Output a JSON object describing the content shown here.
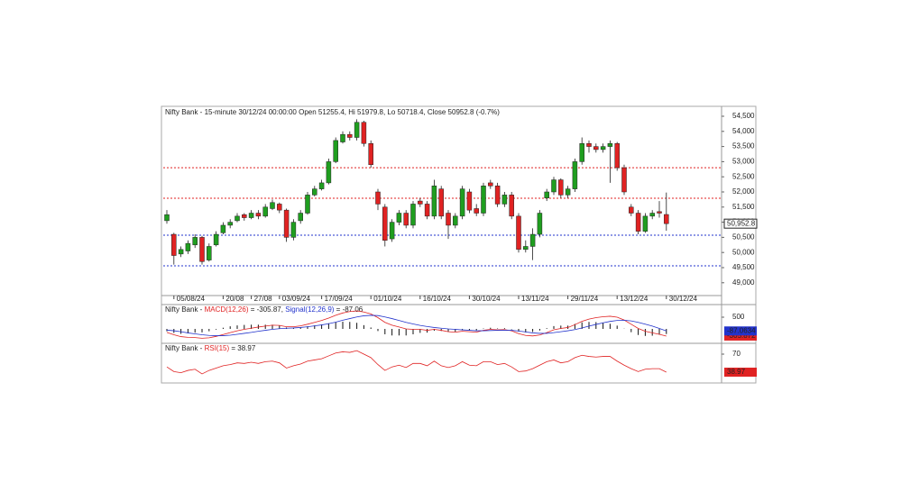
{
  "chart_data": [
    {
      "type": "candlestick",
      "title": "Nifty Bank - 15-minute 30/12/24 00:00:00 Open 51255.4, Hi 51979.8, Lo 50718.4, Close 50952.8 (-0.7%)",
      "categories": [
        null,
        "05/08/24",
        null,
        null,
        null,
        null,
        null,
        null,
        "20/08",
        null,
        null,
        null,
        "27/08",
        null,
        null,
        null,
        "03/09/24",
        null,
        null,
        null,
        null,
        null,
        "17/09/24",
        null,
        null,
        null,
        null,
        null,
        null,
        "01/10/24",
        null,
        null,
        null,
        null,
        null,
        null,
        "16/10/24",
        null,
        null,
        null,
        null,
        null,
        null,
        "30/10/24",
        null,
        null,
        null,
        null,
        null,
        null,
        "13/11/24",
        null,
        null,
        null,
        null,
        null,
        null,
        "29/11/24",
        null,
        null,
        null,
        null,
        null,
        null,
        "13/12/24",
        null,
        null,
        null,
        null,
        null,
        null,
        "30/12/24"
      ],
      "open": [
        51050,
        50600,
        49950,
        50050,
        50250,
        50500,
        49750,
        50250,
        50650,
        50900,
        51050,
        51250,
        51150,
        51300,
        51200,
        51450,
        51600,
        51400,
        50500,
        51050,
        51300,
        51900,
        52100,
        52300,
        53000,
        53650,
        53900,
        53800,
        54300,
        53600,
        52000,
        51500,
        50450,
        51000,
        51300,
        50900,
        51700,
        51600,
        51200,
        52100,
        51300,
        50900,
        51200,
        52000,
        51450,
        51300,
        52300,
        52200,
        51600,
        51900,
        51200,
        50100,
        50200,
        50600,
        51800,
        52000,
        52400,
        51900,
        52100,
        53000,
        53600,
        53500,
        53400,
        53500,
        53600,
        52800,
        51500,
        51300,
        50700,
        51200,
        51350,
        51255.4
      ],
      "high": [
        51400,
        50650,
        50200,
        50400,
        50600,
        50550,
        50300,
        50700,
        51000,
        51100,
        51300,
        51300,
        51400,
        51400,
        51600,
        51750,
        51650,
        51450,
        51100,
        51400,
        52000,
        52200,
        52400,
        53100,
        53800,
        54000,
        54000,
        54400,
        54350,
        53700,
        52100,
        51600,
        51100,
        51400,
        51400,
        51700,
        51800,
        51700,
        52400,
        52200,
        51400,
        51300,
        52200,
        52100,
        51600,
        52300,
        52400,
        52300,
        52000,
        52000,
        51300,
        50400,
        50800,
        51400,
        52100,
        52500,
        52450,
        52200,
        53100,
        53800,
        53700,
        53600,
        53600,
        53700,
        53650,
        52900,
        51600,
        51400,
        51300,
        51400,
        51700,
        51979.8
      ],
      "low": [
        50950,
        49600,
        49850,
        49950,
        50150,
        49600,
        49700,
        50200,
        50600,
        50800,
        51000,
        51050,
        51100,
        51100,
        51150,
        51400,
        51300,
        50350,
        50400,
        50950,
        51250,
        51850,
        52050,
        52250,
        52950,
        53600,
        53700,
        53700,
        53500,
        52800,
        51400,
        50200,
        50350,
        50900,
        50800,
        50800,
        51500,
        51100,
        51100,
        51100,
        50450,
        50800,
        51100,
        51300,
        51200,
        51200,
        52100,
        51500,
        51500,
        51100,
        50000,
        50000,
        49750,
        50500,
        51700,
        51900,
        51800,
        51800,
        52000,
        52900,
        53300,
        53300,
        53300,
        52300,
        52700,
        51900,
        51200,
        50600,
        50650,
        51100,
        51150,
        50718.4
      ],
      "close": [
        51250,
        49900,
        50100,
        50300,
        50500,
        49700,
        50200,
        50600,
        50900,
        51000,
        51200,
        51150,
        51300,
        51200,
        51500,
        51650,
        51400,
        50500,
        51000,
        51300,
        51900,
        52100,
        52300,
        53000,
        53700,
        53900,
        53800,
        54300,
        53600,
        52900,
        51600,
        50400,
        51000,
        51300,
        50900,
        51600,
        51600,
        51200,
        52200,
        51200,
        50900,
        51200,
        52100,
        51400,
        51300,
        52200,
        52200,
        51600,
        51900,
        51200,
        50100,
        50200,
        50600,
        51300,
        52000,
        52400,
        51900,
        52100,
        53000,
        53600,
        53500,
        53400,
        53500,
        53600,
        52800,
        52000,
        51300,
        50700,
        51200,
        51300,
        51300,
        50952.8
      ],
      "up_color": "#1f9e1f",
      "down_color": "#e02222",
      "last_value_label": "50,952.8",
      "ylim": [
        48577,
        54768
      ],
      "yticks": [
        {
          "value": 54500,
          "label": "54,500"
        },
        {
          "value": 54000,
          "label": "54,000"
        },
        {
          "value": 53500,
          "label": "53,500"
        },
        {
          "value": 53000,
          "label": "53,000"
        },
        {
          "value": 52500,
          "label": "52,500"
        },
        {
          "value": 52000,
          "label": "52,000"
        },
        {
          "value": 51500,
          "label": "51,500"
        },
        {
          "value": 51000,
          "label": "51,000"
        },
        {
          "value": 50500,
          "label": "50,500"
        },
        {
          "value": 50000,
          "label": "50,000"
        },
        {
          "value": 49500,
          "label": "49,500"
        },
        {
          "value": 49000,
          "label": "49,000"
        }
      ],
      "levels": [
        {
          "value": 52800,
          "color": "#e02222"
        },
        {
          "value": 51790,
          "color": "#e02222"
        },
        {
          "value": 50570,
          "color": "#2233cc"
        },
        {
          "value": 49560,
          "color": "#2233cc"
        }
      ]
    },
    {
      "type": "macd",
      "title_parts": [
        "Nifty Bank - ",
        "MACD(12,26)",
        " = -305.87, ",
        "Signal(12,26,9)",
        " = -87.06"
      ],
      "series": [
        {
          "name": "MACD(12,26)",
          "color": "#e02222",
          "last_label": "-305.872",
          "values": [
            -150,
            -250,
            -330,
            -360,
            -370,
            -400,
            -380,
            -320,
            -240,
            -160,
            -80,
            -20,
            30,
            80,
            120,
            160,
            150,
            90,
            90,
            130,
            200,
            280,
            360,
            460,
            580,
            680,
            740,
            770,
            720,
            640,
            480,
            280,
            160,
            80,
            0,
            -20,
            -20,
            -60,
            -20,
            -60,
            -120,
            -140,
            -100,
            -120,
            -140,
            -60,
            -20,
            -40,
            -30,
            -80,
            -200,
            -280,
            -300,
            -260,
            -160,
            -40,
            20,
            60,
            180,
            320,
            420,
            480,
            520,
            540,
            500,
            380,
            200,
            20,
            -100,
            -170,
            -230,
            -305.87
          ]
        },
        {
          "name": "Signal(12,26,9)",
          "color": "#2233cc",
          "last_label": "-87.0634",
          "values": [
            -50,
            -80,
            -120,
            -170,
            -210,
            -250,
            -280,
            -290,
            -290,
            -270,
            -230,
            -190,
            -150,
            -100,
            -60,
            -20,
            10,
            30,
            40,
            60,
            90,
            130,
            170,
            220,
            290,
            370,
            440,
            510,
            560,
            580,
            570,
            510,
            440,
            360,
            280,
            210,
            150,
            100,
            60,
            30,
            0,
            -20,
            -40,
            -60,
            -80,
            -80,
            -70,
            -60,
            -60,
            -60,
            -90,
            -130,
            -170,
            -190,
            -190,
            -160,
            -120,
            -80,
            -30,
            40,
            120,
            190,
            260,
            320,
            360,
            370,
            340,
            280,
            200,
            120,
            20,
            -87.06
          ]
        }
      ],
      "histogram": {
        "color": "#111111",
        "values": [
          -100,
          -170,
          -210,
          -190,
          -160,
          -150,
          -100,
          -30,
          50,
          110,
          150,
          170,
          180,
          180,
          180,
          180,
          140,
          60,
          50,
          70,
          110,
          150,
          190,
          240,
          290,
          310,
          300,
          260,
          160,
          60,
          -90,
          -230,
          -280,
          -280,
          -280,
          -230,
          -170,
          -160,
          -80,
          -90,
          -120,
          -120,
          -60,
          -60,
          -60,
          20,
          50,
          20,
          30,
          -20,
          -110,
          -150,
          -130,
          -70,
          30,
          120,
          140,
          140,
          210,
          280,
          300,
          290,
          260,
          220,
          140,
          10,
          -140,
          -260,
          -300,
          -290,
          -250,
          -218.81
        ]
      },
      "ylim": [
        -500,
        1000
      ],
      "yticks": [
        500
      ]
    },
    {
      "type": "rsi",
      "title_parts": [
        "Nifty Bank - ",
        "RSI(15)",
        " = 38.97"
      ],
      "series": [
        {
          "name": "RSI(15)",
          "color": "#e02222",
          "last_label": "38.97",
          "values": [
            48,
            40,
            38,
            42,
            44,
            36,
            42,
            46,
            50,
            52,
            55,
            54,
            56,
            54,
            57,
            58,
            55,
            46,
            50,
            53,
            58,
            60,
            62,
            67,
            72,
            74,
            73,
            76,
            70,
            64,
            52,
            42,
            48,
            51,
            47,
            54,
            54,
            50,
            58,
            50,
            47,
            50,
            57,
            51,
            50,
            57,
            57,
            52,
            54,
            48,
            40,
            41,
            45,
            51,
            57,
            60,
            55,
            57,
            64,
            68,
            66,
            65,
            66,
            66,
            58,
            51,
            45,
            40,
            44,
            45,
            45,
            38.97
          ]
        }
      ],
      "ylim": [
        23.5,
        85.5
      ],
      "yticks": [
        70
      ]
    }
  ]
}
